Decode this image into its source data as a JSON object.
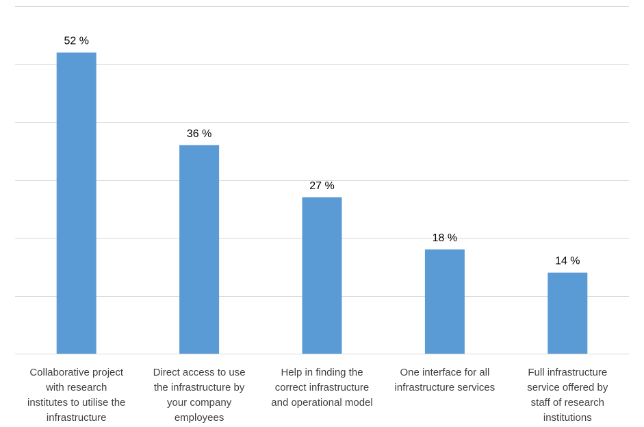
{
  "chart_data": {
    "type": "bar",
    "categories": [
      [
        "Collaborative project",
        "with research",
        "institutes to utilise the",
        "infrastructure"
      ],
      [
        "Direct access to use",
        "the infrastructure by",
        "your company",
        "employees"
      ],
      [
        "Help in finding the",
        "correct infrastructure",
        "and operational model"
      ],
      [
        "One interface for all",
        "infrastructure services"
      ],
      [
        "Full infrastructure",
        "service offered by",
        "staff of research",
        "institutions"
      ]
    ],
    "values": [
      52,
      36,
      27,
      18,
      14
    ],
    "data_labels": [
      "52 %",
      "36 %",
      "27 %",
      "18 %",
      "14 %"
    ],
    "title": "",
    "xlabel": "",
    "ylabel": "",
    "ylim": [
      0,
      60
    ],
    "y_ticks": [
      0,
      10,
      20,
      30,
      40,
      50,
      60
    ],
    "grid": true,
    "colors": {
      "bar": "#5b9bd5",
      "grid": "#d9d9d9"
    }
  }
}
